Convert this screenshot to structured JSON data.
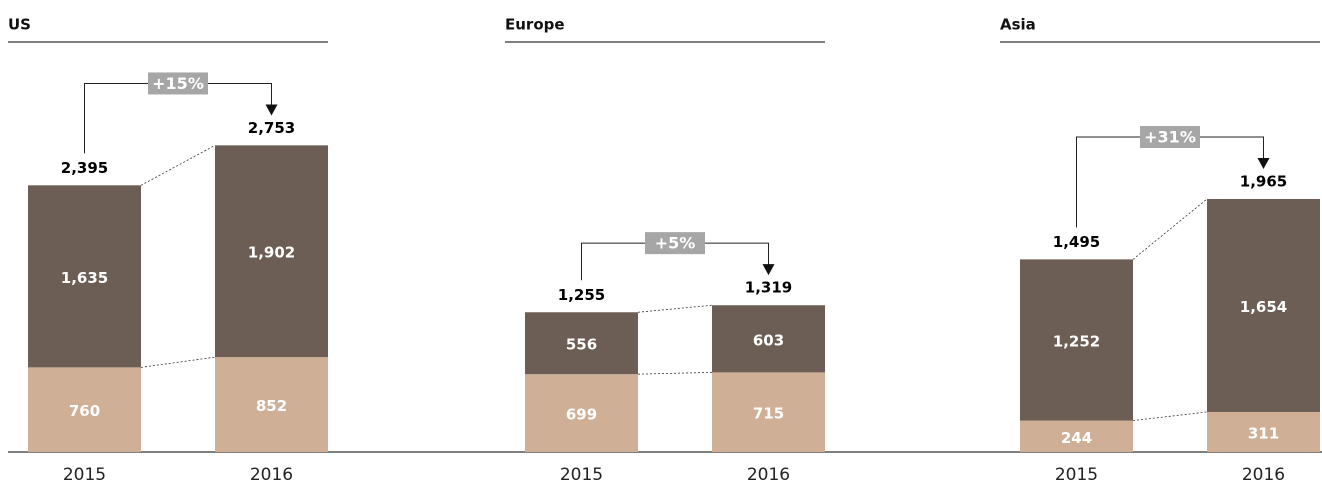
{
  "chart_data": [
    {
      "type": "bar",
      "title": "US",
      "categories": [
        "2015",
        "2016"
      ],
      "ylim": [
        0,
        3700
      ],
      "series": [
        {
          "name": null,
          "color": "#cfb097",
          "values": [
            760,
            852
          ]
        },
        {
          "name": null,
          "color": "#6c5e54",
          "values": [
            1635,
            1902
          ],
          "value_labels": [
            "1,635",
            "1,902"
          ]
        }
      ],
      "totals": [
        2395,
        2753
      ],
      "total_labels": [
        "2,395",
        "2,753"
      ],
      "annotation": "+15%"
    },
    {
      "type": "bar",
      "title": "Europe",
      "categories": [
        "2015",
        "2016"
      ],
      "ylim": [
        0,
        3700
      ],
      "series": [
        {
          "name": null,
          "color": "#cfb097",
          "values": [
            699,
            715
          ]
        },
        {
          "name": null,
          "color": "#6c5e54",
          "values": [
            556,
            603
          ]
        }
      ],
      "totals": [
        1255,
        1319
      ],
      "total_labels": [
        "1,255",
        "1,319"
      ],
      "annotation": "+5%"
    },
    {
      "type": "bar",
      "title": "Asia",
      "categories": [
        "2015",
        "2016"
      ],
      "ylim": [
        0,
        3200
      ],
      "series": [
        {
          "name": null,
          "color": "#cfb097",
          "values": [
            244,
            311
          ]
        },
        {
          "name": null,
          "color": "#6c5e54",
          "values": [
            1252,
            1654
          ],
          "value_labels": [
            "1,252",
            "1,654"
          ]
        }
      ],
      "totals": [
        1495,
        1965
      ],
      "total_labels": [
        "1,495",
        "1,965"
      ],
      "annotation": "+31%"
    }
  ]
}
